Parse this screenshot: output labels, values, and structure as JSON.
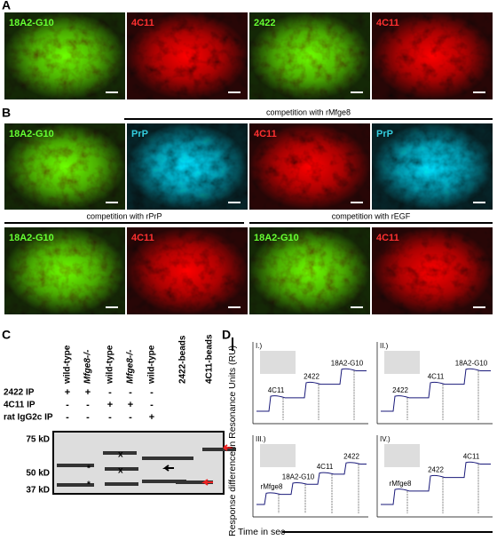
{
  "panel_labels": [
    "A",
    "B",
    "C",
    "D"
  ],
  "panel_a": {
    "images": [
      {
        "label": "18A2-G10",
        "channel": "green"
      },
      {
        "label": "4C11",
        "channel": "red"
      },
      {
        "label": "2422",
        "channel": "green"
      },
      {
        "label": "4C11",
        "channel": "red"
      }
    ]
  },
  "panel_b": {
    "competitions": [
      "competition with rMfge8",
      "competition with rPrP",
      "competition with rEGF"
    ],
    "row1": [
      {
        "label": "18A2-G10",
        "channel": "green"
      },
      {
        "label": "PrP",
        "channel": "cyan"
      },
      {
        "label": "4C11",
        "channel": "red"
      },
      {
        "label": "PrP",
        "channel": "cyan"
      }
    ],
    "row2": [
      {
        "label": "18A2-G10",
        "channel": "green"
      },
      {
        "label": "4C11",
        "channel": "red"
      },
      {
        "label": "18A2-G10",
        "channel": "green"
      },
      {
        "label": "4C11",
        "channel": "red"
      }
    ]
  },
  "panel_c": {
    "lanes": [
      {
        "text": "wild-type",
        "italic": false
      },
      {
        "text": "Mfge8-/-",
        "italic": true
      },
      {
        "text": "wild-type",
        "italic": false
      },
      {
        "text": "Mfge8-/-",
        "italic": true
      },
      {
        "text": "wild-type",
        "italic": false
      },
      {
        "text": "2422-beads",
        "italic": false
      },
      {
        "text": "4C11-beads",
        "italic": false
      }
    ],
    "rows": [
      {
        "label": "2422 IP",
        "signs": [
          "+",
          "+",
          "-",
          "-",
          "-"
        ]
      },
      {
        "label": "4C11 IP",
        "signs": [
          "-",
          "-",
          "+",
          "+",
          "-"
        ]
      },
      {
        "label": "rat IgG2c IP",
        "signs": [
          "-",
          "-",
          "-",
          "-",
          "+"
        ]
      }
    ],
    "markers": [
      "75 kD",
      "50 kD",
      "37 kD"
    ],
    "blot_marks": [
      "*",
      "*",
      "x",
      "x"
    ]
  },
  "panel_d": {
    "y_label": "Response difference in Resonance Units (RU)",
    "x_label": "Time in sec",
    "plots": [
      {
        "label": "I.)",
        "annotations": [
          "4C11",
          "2422",
          "18A2-G10"
        ]
      },
      {
        "label": "II.)",
        "annotations": [
          "2422",
          "4C11",
          "18A2-G10"
        ]
      },
      {
        "label": "III.)",
        "annotations": [
          "rMfge8",
          "18A2-G10",
          "4C11",
          "2422"
        ]
      },
      {
        "label": "IV.)",
        "annotations": [
          "rMfge8",
          "2422",
          "4C11"
        ]
      }
    ]
  }
}
